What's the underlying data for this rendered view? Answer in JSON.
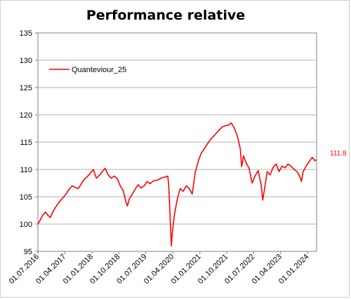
{
  "chart_data": {
    "type": "line",
    "title": "Performance relative",
    "xlabel": "",
    "ylabel": "",
    "ylim": [
      95,
      135
    ],
    "y_ticks": [
      95,
      100,
      105,
      110,
      115,
      120,
      125,
      130,
      135
    ],
    "x_tick_labels": [
      "01.07.2016",
      "01.04.2017",
      "01.01.2018",
      "01.10.2018",
      "01.07.2019",
      "01.04.2020",
      "01.01.2021",
      "01.10.2021",
      "01.07.2022",
      "01.04.2023",
      "01.01.2024"
    ],
    "x_range": [
      "2016-07-01",
      "2024-03-31"
    ],
    "grid": "horizontal",
    "legend_position": "top-left",
    "last_value_label": "111.8",
    "series": [
      {
        "name": "Quanteviour_25",
        "color": "#ff0000",
        "points": [
          [
            "2016-07-01",
            100.0
          ],
          [
            "2016-07-20",
            100.6
          ],
          [
            "2016-08-15",
            101.5
          ],
          [
            "2016-09-15",
            102.2
          ],
          [
            "2016-10-10",
            101.6
          ],
          [
            "2016-11-05",
            101.2
          ],
          [
            "2016-12-01",
            102.3
          ],
          [
            "2017-01-01",
            103.2
          ],
          [
            "2017-02-01",
            104.0
          ],
          [
            "2017-03-01",
            104.6
          ],
          [
            "2017-04-01",
            105.2
          ],
          [
            "2017-05-15",
            106.4
          ],
          [
            "2017-06-15",
            107.0
          ],
          [
            "2017-07-15",
            106.7
          ],
          [
            "2017-08-15",
            106.5
          ],
          [
            "2017-09-15",
            107.4
          ],
          [
            "2017-10-15",
            108.2
          ],
          [
            "2017-11-15",
            108.7
          ],
          [
            "2017-12-15",
            109.3
          ],
          [
            "2018-01-15",
            110.0
          ],
          [
            "2018-02-15",
            108.4
          ],
          [
            "2018-03-15",
            108.9
          ],
          [
            "2018-04-15",
            109.6
          ],
          [
            "2018-05-15",
            110.2
          ],
          [
            "2018-06-15",
            109.0
          ],
          [
            "2018-07-15",
            108.4
          ],
          [
            "2018-08-15",
            108.8
          ],
          [
            "2018-09-15",
            108.3
          ],
          [
            "2018-10-15",
            107.0
          ],
          [
            "2018-11-15",
            106.1
          ],
          [
            "2018-12-10",
            104.2
          ],
          [
            "2018-12-27",
            103.3
          ],
          [
            "2019-01-15",
            104.6
          ],
          [
            "2019-02-15",
            105.5
          ],
          [
            "2019-03-15",
            106.4
          ],
          [
            "2019-04-15",
            107.2
          ],
          [
            "2019-05-15",
            106.6
          ],
          [
            "2019-06-15",
            107.0
          ],
          [
            "2019-07-15",
            107.8
          ],
          [
            "2019-08-15",
            107.4
          ],
          [
            "2019-09-15",
            107.9
          ],
          [
            "2019-10-15",
            108.0
          ],
          [
            "2019-11-15",
            108.2
          ],
          [
            "2019-12-15",
            108.5
          ],
          [
            "2020-01-15",
            108.6
          ],
          [
            "2020-02-10",
            108.8
          ],
          [
            "2020-02-20",
            107.0
          ],
          [
            "2020-03-05",
            101.0
          ],
          [
            "2020-03-18",
            96.0
          ],
          [
            "2020-03-25",
            98.0
          ],
          [
            "2020-04-15",
            101.5
          ],
          [
            "2020-05-15",
            104.5
          ],
          [
            "2020-06-15",
            106.5
          ],
          [
            "2020-07-15",
            106.0
          ],
          [
            "2020-08-15",
            107.0
          ],
          [
            "2020-09-15",
            106.5
          ],
          [
            "2020-10-15",
            105.5
          ],
          [
            "2020-11-15",
            109.5
          ],
          [
            "2020-12-15",
            111.5
          ],
          [
            "2021-01-15",
            113.0
          ],
          [
            "2021-02-15",
            113.8
          ],
          [
            "2021-03-15",
            114.6
          ],
          [
            "2021-04-15",
            115.4
          ],
          [
            "2021-05-15",
            116.0
          ],
          [
            "2021-06-15",
            116.6
          ],
          [
            "2021-07-15",
            117.2
          ],
          [
            "2021-08-15",
            117.8
          ],
          [
            "2021-09-15",
            118.0
          ],
          [
            "2021-10-15",
            118.1
          ],
          [
            "2021-11-15",
            118.5
          ],
          [
            "2021-12-15",
            117.6
          ],
          [
            "2022-01-15",
            116.2
          ],
          [
            "2022-02-15",
            113.8
          ],
          [
            "2022-03-01",
            110.5
          ],
          [
            "2022-03-20",
            112.5
          ],
          [
            "2022-04-15",
            111.2
          ],
          [
            "2022-05-15",
            110.2
          ],
          [
            "2022-06-15",
            107.5
          ],
          [
            "2022-07-15",
            108.8
          ],
          [
            "2022-08-15",
            109.8
          ],
          [
            "2022-09-15",
            107.2
          ],
          [
            "2022-10-01",
            104.4
          ],
          [
            "2022-10-20",
            106.5
          ],
          [
            "2022-11-15",
            109.6
          ],
          [
            "2022-12-15",
            109.0
          ],
          [
            "2023-01-15",
            110.4
          ],
          [
            "2023-02-15",
            111.0
          ],
          [
            "2023-03-15",
            109.6
          ],
          [
            "2023-04-15",
            110.6
          ],
          [
            "2023-05-15",
            110.3
          ],
          [
            "2023-06-15",
            111.0
          ],
          [
            "2023-07-15",
            110.6
          ],
          [
            "2023-08-15",
            110.0
          ],
          [
            "2023-09-15",
            109.6
          ],
          [
            "2023-10-15",
            108.6
          ],
          [
            "2023-10-28",
            107.8
          ],
          [
            "2023-11-15",
            109.6
          ],
          [
            "2023-12-15",
            110.6
          ],
          [
            "2024-01-15",
            111.4
          ],
          [
            "2024-02-15",
            112.2
          ],
          [
            "2024-03-15",
            111.6
          ],
          [
            "2024-03-31",
            111.8
          ]
        ]
      }
    ]
  }
}
